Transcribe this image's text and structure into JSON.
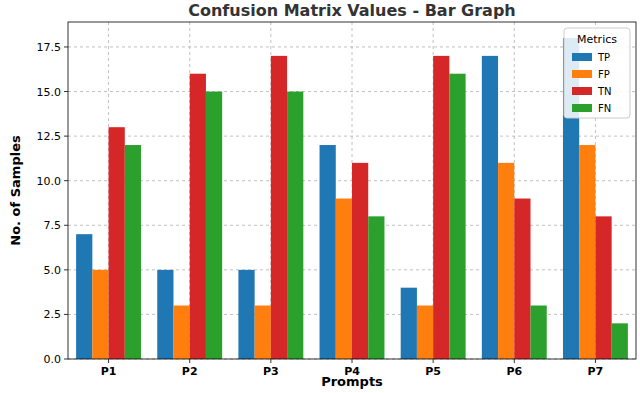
{
  "chart_data": {
    "type": "bar",
    "title": "Confusion Matrix Values - Bar Graph",
    "x_label": "Prompts",
    "y_label": "No. of Samples",
    "legend_title": "Metrics",
    "categories": [
      "P1",
      "P2",
      "P3",
      "P4",
      "P5",
      "P6",
      "P7"
    ],
    "series": [
      {
        "name": "TP",
        "color": "#1f77b4",
        "values": [
          7,
          5,
          5,
          12,
          4,
          17,
          18
        ]
      },
      {
        "name": "FP",
        "color": "#ff7f0e",
        "values": [
          5,
          3,
          3,
          9,
          3,
          11,
          12
        ]
      },
      {
        "name": "TN",
        "color": "#d62728",
        "values": [
          13,
          16,
          17,
          11,
          17,
          9,
          8
        ]
      },
      {
        "name": "FN",
        "color": "#2ca02c",
        "values": [
          12,
          15,
          15,
          8,
          16,
          3,
          2
        ]
      }
    ],
    "ylim": [
      0,
      18.9
    ],
    "yticks": [
      {
        "value": 0,
        "label": "0.0"
      },
      2.5,
      {
        "value": 5,
        "label": "5.0"
      },
      7.5,
      {
        "value": 10,
        "label": "10.0"
      },
      12.5,
      {
        "value": 15,
        "label": "15.0"
      },
      17.5
    ],
    "grid": true,
    "legend": "upper right"
  }
}
